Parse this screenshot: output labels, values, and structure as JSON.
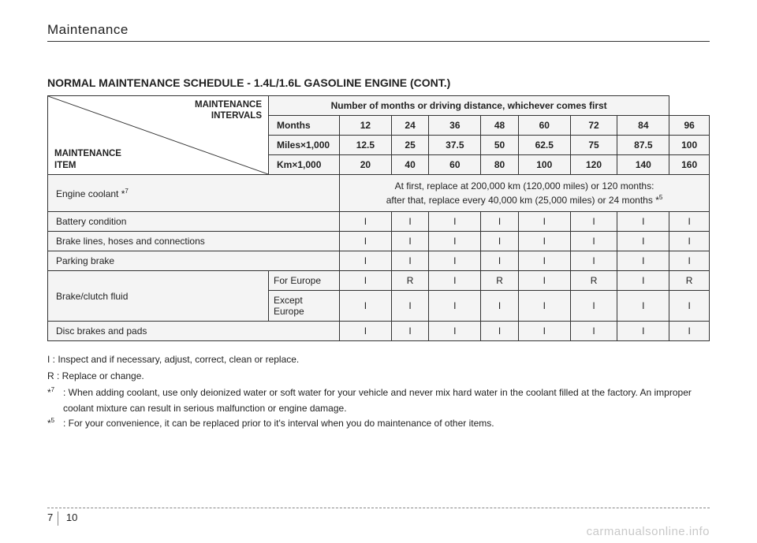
{
  "header": {
    "title": "Maintenance"
  },
  "page_title": "NORMAL MAINTENANCE SCHEDULE - 1.4L/1.6L GASOLINE ENGINE (CONT.)",
  "diag": {
    "top1": "MAINTENANCE",
    "top2": "INTERVALS",
    "bot1": "MAINTENANCE",
    "bot2": "ITEM"
  },
  "banner": "Number of months or driving distance, whichever comes first",
  "row_labels": [
    "Months",
    "Miles×1,000",
    "Km×1,000"
  ],
  "cols": {
    "months": [
      "12",
      "24",
      "36",
      "48",
      "60",
      "72",
      "84",
      "96"
    ],
    "miles": [
      "12.5",
      "25",
      "37.5",
      "50",
      "62.5",
      "75",
      "87.5",
      "100"
    ],
    "km": [
      "20",
      "40",
      "60",
      "80",
      "100",
      "120",
      "140",
      "160"
    ]
  },
  "items": [
    {
      "label_html": "Engine coolant *",
      "sup": "7",
      "span_text1": "At first, replace at 200,000 km (120,000 miles) or 120 months:",
      "span_text2_html": "after that, replace every 40,000 km (25,000 miles) or 24 months *",
      "span_sup": "5"
    },
    {
      "label": "Battery condition",
      "cells": [
        "I",
        "I",
        "I",
        "I",
        "I",
        "I",
        "I",
        "I"
      ]
    },
    {
      "label": "Brake lines, hoses and connections",
      "cells": [
        "I",
        "I",
        "I",
        "I",
        "I",
        "I",
        "I",
        "I"
      ]
    },
    {
      "label": "Parking brake",
      "cells": [
        "I",
        "I",
        "I",
        "I",
        "I",
        "I",
        "I",
        "I"
      ]
    },
    {
      "label": "Brake/clutch fluid",
      "subrows": [
        {
          "sub": "For Europe",
          "cells": [
            "I",
            "R",
            "I",
            "R",
            "I",
            "R",
            "I",
            "R"
          ]
        },
        {
          "sub": "Except Europe",
          "cells": [
            "I",
            "I",
            "I",
            "I",
            "I",
            "I",
            "I",
            "I"
          ]
        }
      ]
    },
    {
      "label": "Disc brakes and pads",
      "cells": [
        "I",
        "I",
        "I",
        "I",
        "I",
        "I",
        "I",
        "I"
      ]
    }
  ],
  "notes": {
    "i": "I : Inspect and if necessary, adjust, correct, clean or replace.",
    "r": "R : Replace or change.",
    "fn7": {
      "mark": "*",
      "sup": "7",
      "text": ": When adding coolant, use only deionized water or soft water for your vehicle and never mix hard water in the coolant filled at the factory. An improper coolant mixture can result in serious malfunction or engine damage."
    },
    "fn5": {
      "mark": "*",
      "sup": "5",
      "text": ": For your convenience, it can be replaced prior to it's interval when you do maintenance of other items."
    }
  },
  "footer": {
    "section": "7",
    "page": "10"
  },
  "watermark": "carmanualsonline.info",
  "colors": {
    "cell_bg": "#f4f4f4",
    "border": "#333333",
    "text": "#222222",
    "dash": "#888888",
    "watermark": "#c9c9c9",
    "background": "#ffffff"
  },
  "typography": {
    "header_fontsize": 17,
    "title_fontsize": 14,
    "table_fontsize": 12,
    "notes_fontsize": 12,
    "footer_fontsize": 13,
    "watermark_fontsize": 15
  }
}
